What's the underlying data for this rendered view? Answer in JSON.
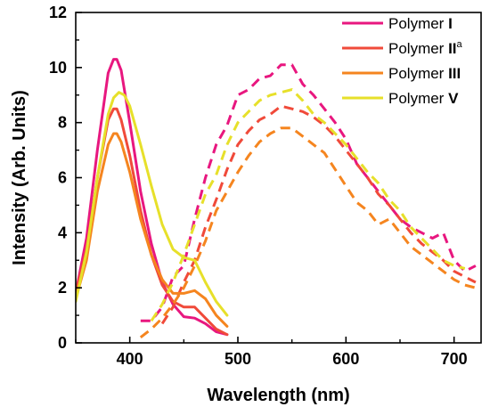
{
  "chart_data": {
    "type": "line",
    "xlabel": "Wavelength (nm)",
    "ylabel": "Intensity (Arb. Units)",
    "xlim": [
      350,
      725
    ],
    "ylim": [
      0,
      12
    ],
    "x_ticks": [
      400,
      500,
      600,
      700
    ],
    "y_ticks": [
      0,
      2,
      4,
      6,
      8,
      10,
      12
    ],
    "legend_position": "top-right",
    "series": [
      {
        "name": "Polymer I",
        "name_base": "Polymer ",
        "name_bold": "I",
        "name_sup": "",
        "color": "#E8177F",
        "absorption": {
          "x": [
            350,
            360,
            370,
            380,
            385,
            388,
            392,
            400,
            410,
            420,
            430,
            440,
            450,
            460,
            470,
            480,
            490
          ],
          "y": [
            1.8,
            3.8,
            7.0,
            9.8,
            10.3,
            10.3,
            9.9,
            8.0,
            5.5,
            3.6,
            2.2,
            1.4,
            0.95,
            0.9,
            0.7,
            0.4,
            0.3
          ]
        },
        "emission": {
          "x": [
            410,
            420,
            430,
            440,
            450,
            460,
            470,
            480,
            490,
            500,
            510,
            520,
            530,
            540,
            550,
            560,
            570,
            580,
            590,
            600,
            610,
            620,
            630,
            640,
            650,
            660,
            670,
            680,
            690,
            700,
            710,
            720
          ],
          "y": [
            0.8,
            0.8,
            1.3,
            2.4,
            2.8,
            4.5,
            6.0,
            7.2,
            7.9,
            9.0,
            9.2,
            9.6,
            9.7,
            10.1,
            10.1,
            9.4,
            9.0,
            8.5,
            8.0,
            7.4,
            6.5,
            6.0,
            5.5,
            5.0,
            4.5,
            4.2,
            4.0,
            3.8,
            4.0,
            3.0,
            2.6,
            2.8
          ]
        }
      },
      {
        "name": "Polymer IIa",
        "name_base": "Polymer ",
        "name_bold": "II",
        "name_sup": "a",
        "color": "#F04A3A",
        "absorption": {
          "x": [
            350,
            360,
            370,
            380,
            385,
            388,
            392,
            400,
            410,
            420,
            430,
            440,
            450,
            460,
            470,
            480,
            490
          ],
          "y": [
            1.8,
            3.4,
            6.0,
            8.1,
            8.5,
            8.5,
            8.1,
            6.8,
            4.8,
            3.2,
            2.1,
            1.5,
            1.3,
            1.3,
            0.9,
            0.5,
            0.3
          ]
        },
        "emission": {
          "x": [
            430,
            440,
            450,
            460,
            470,
            480,
            490,
            500,
            510,
            520,
            530,
            540,
            550,
            560,
            570,
            580,
            590,
            600,
            610,
            620,
            630,
            640,
            650,
            660,
            670,
            680,
            690,
            700,
            710,
            720
          ],
          "y": [
            0.7,
            1.3,
            2.2,
            3.0,
            4.2,
            5.2,
            6.3,
            7.2,
            7.7,
            8.1,
            8.3,
            8.6,
            8.5,
            8.4,
            8.2,
            7.9,
            7.5,
            7.0,
            6.5,
            6.0,
            5.4,
            5.0,
            4.5,
            4.0,
            3.6,
            3.3,
            3.0,
            2.6,
            2.4,
            2.2
          ]
        }
      },
      {
        "name": "Polymer III",
        "name_base": "Polymer ",
        "name_bold": "III",
        "name_sup": "",
        "color": "#F5851F",
        "absorption": {
          "x": [
            350,
            360,
            370,
            380,
            385,
            388,
            392,
            400,
            410,
            420,
            430,
            440,
            450,
            460,
            470,
            480,
            490
          ],
          "y": [
            1.6,
            3.0,
            5.5,
            7.2,
            7.6,
            7.6,
            7.3,
            6.2,
            4.5,
            3.2,
            2.3,
            1.8,
            1.8,
            1.9,
            1.6,
            1.0,
            0.6
          ]
        },
        "emission": {
          "x": [
            410,
            420,
            430,
            440,
            450,
            460,
            470,
            480,
            490,
            500,
            510,
            520,
            530,
            540,
            550,
            560,
            570,
            580,
            590,
            600,
            610,
            620,
            630,
            640,
            650,
            660,
            670,
            680,
            690,
            700,
            710,
            720
          ],
          "y": [
            0.2,
            0.5,
            0.9,
            1.4,
            2.0,
            2.8,
            3.7,
            4.8,
            5.5,
            6.2,
            6.8,
            7.3,
            7.6,
            7.8,
            7.8,
            7.5,
            7.2,
            6.9,
            6.3,
            5.7,
            5.1,
            4.8,
            4.3,
            4.5,
            4.0,
            3.5,
            3.2,
            2.9,
            2.6,
            2.3,
            2.1,
            2.0
          ]
        }
      },
      {
        "name": "Polymer V",
        "name_base": "Polymer ",
        "name_bold": "V",
        "name_sup": "",
        "color": "#E7E02A",
        "absorption": {
          "x": [
            350,
            360,
            370,
            380,
            385,
            390,
            395,
            400,
            410,
            420,
            430,
            440,
            450,
            460,
            470,
            480,
            490
          ],
          "y": [
            1.5,
            3.3,
            6.0,
            8.3,
            8.9,
            9.1,
            9.0,
            8.6,
            7.2,
            5.7,
            4.3,
            3.4,
            3.1,
            3.0,
            2.2,
            1.5,
            1.0
          ]
        },
        "emission": {
          "x": [
            420,
            430,
            440,
            450,
            460,
            470,
            480,
            490,
            500,
            510,
            520,
            530,
            540,
            550,
            560,
            570,
            580,
            590,
            600,
            610,
            620,
            630,
            640,
            650,
            660,
            670,
            680,
            690,
            700,
            710
          ],
          "y": [
            0.8,
            1.4,
            2.2,
            3.2,
            4.3,
            5.4,
            6.1,
            7.2,
            8.0,
            8.4,
            8.8,
            9.0,
            9.1,
            9.2,
            8.8,
            8.3,
            8.0,
            7.6,
            7.2,
            6.7,
            6.2,
            5.8,
            5.2,
            4.8,
            4.2,
            3.8,
            3.4,
            3.0,
            2.8,
            2.7
          ]
        }
      }
    ]
  }
}
